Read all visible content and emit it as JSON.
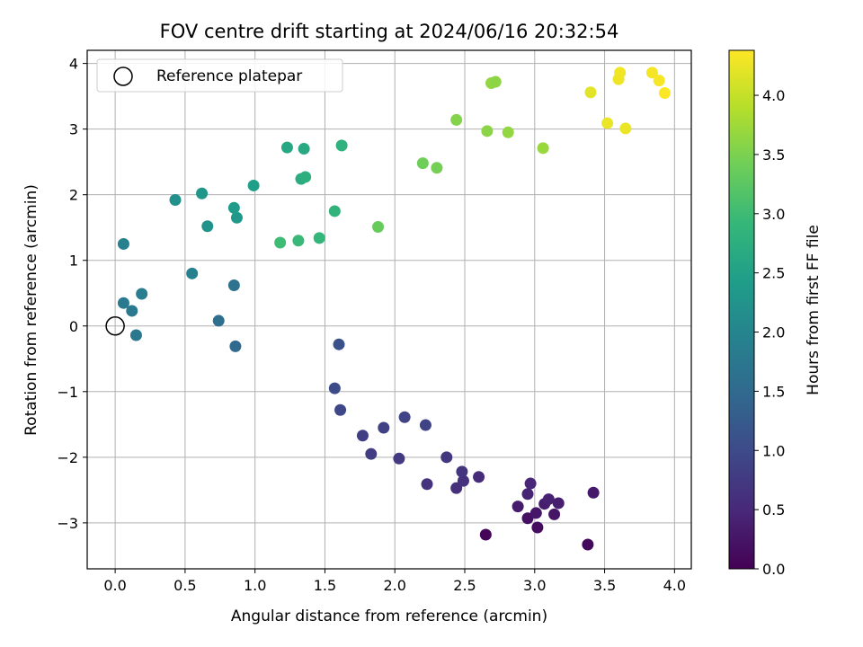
{
  "chart_data": {
    "type": "scatter",
    "title": "FOV centre drift starting at 2024/06/16 20:32:54",
    "xlabel": "Angular distance from reference (arcmin)",
    "ylabel": "Rotation from reference (arcmin)",
    "xlim": [
      -0.2,
      4.12
    ],
    "ylim": [
      -3.7,
      4.2
    ],
    "xticks": [
      0.0,
      0.5,
      1.0,
      1.5,
      2.0,
      2.5,
      3.0,
      3.5,
      4.0
    ],
    "xtick_labels": [
      "0.0",
      "0.5",
      "1.0",
      "1.5",
      "2.0",
      "2.5",
      "3.0",
      "3.5",
      "4.0"
    ],
    "yticks": [
      -3,
      -2,
      -1,
      0,
      1,
      2,
      3,
      4
    ],
    "ytick_labels": [
      "−3",
      "−2",
      "−1",
      "0",
      "1",
      "2",
      "3",
      "4"
    ],
    "grid": true,
    "legend": {
      "placement": "top-left",
      "label": "Reference platepar"
    },
    "reference_point": {
      "x": 0.0,
      "y": 0.0
    },
    "colorbar": {
      "label": "Hours from first FF file",
      "range": [
        0.0,
        4.38
      ],
      "ticks": [
        0.0,
        0.5,
        1.0,
        1.5,
        2.0,
        2.5,
        3.0,
        3.5,
        4.0
      ],
      "tick_labels": [
        "0.0",
        "0.5",
        "1.0",
        "1.5",
        "2.0",
        "2.5",
        "3.0",
        "3.5",
        "4.0"
      ],
      "colormap": "viridis",
      "colormap_stops": [
        "#440154",
        "#482878",
        "#3e4989",
        "#31688e",
        "#26828e",
        "#1f9e89",
        "#35b779",
        "#6ece58",
        "#b5de2b",
        "#fde725"
      ]
    },
    "points": [
      {
        "x": 2.65,
        "y": -3.18,
        "c": 0.05
      },
      {
        "x": 3.38,
        "y": -3.33,
        "c": 0.1
      },
      {
        "x": 3.02,
        "y": -3.07,
        "c": 0.15
      },
      {
        "x": 2.95,
        "y": -2.93,
        "c": 0.2
      },
      {
        "x": 3.14,
        "y": -2.87,
        "c": 0.25
      },
      {
        "x": 3.01,
        "y": -2.85,
        "c": 0.28
      },
      {
        "x": 2.88,
        "y": -2.75,
        "c": 0.32
      },
      {
        "x": 3.07,
        "y": -2.71,
        "c": 0.35
      },
      {
        "x": 3.17,
        "y": -2.7,
        "c": 0.38
      },
      {
        "x": 3.1,
        "y": -2.64,
        "c": 0.4
      },
      {
        "x": 2.95,
        "y": -2.56,
        "c": 0.44
      },
      {
        "x": 3.42,
        "y": -2.54,
        "c": 0.3
      },
      {
        "x": 2.97,
        "y": -2.4,
        "c": 0.48
      },
      {
        "x": 2.6,
        "y": -2.3,
        "c": 0.55
      },
      {
        "x": 2.44,
        "y": -2.47,
        "c": 0.6
      },
      {
        "x": 2.49,
        "y": -2.36,
        "c": 0.62
      },
      {
        "x": 2.23,
        "y": -2.41,
        "c": 0.65
      },
      {
        "x": 2.48,
        "y": -2.22,
        "c": 0.68
      },
      {
        "x": 2.37,
        "y": -2.0,
        "c": 0.72
      },
      {
        "x": 2.03,
        "y": -2.02,
        "c": 0.75
      },
      {
        "x": 1.83,
        "y": -1.95,
        "c": 0.78
      },
      {
        "x": 1.77,
        "y": -1.67,
        "c": 0.82
      },
      {
        "x": 1.92,
        "y": -1.55,
        "c": 0.85
      },
      {
        "x": 2.22,
        "y": -1.51,
        "c": 0.88
      },
      {
        "x": 2.07,
        "y": -1.39,
        "c": 0.9
      },
      {
        "x": 1.61,
        "y": -1.28,
        "c": 0.95
      },
      {
        "x": 1.57,
        "y": -0.95,
        "c": 1.0
      },
      {
        "x": 1.6,
        "y": -0.28,
        "c": 1.1
      },
      {
        "x": 0.86,
        "y": -0.31,
        "c": 1.5
      },
      {
        "x": 0.15,
        "y": -0.14,
        "c": 1.75
      },
      {
        "x": 0.74,
        "y": 0.08,
        "c": 1.6
      },
      {
        "x": 0.12,
        "y": 0.23,
        "c": 1.78
      },
      {
        "x": 0.06,
        "y": 0.35,
        "c": 1.8
      },
      {
        "x": 0.19,
        "y": 0.49,
        "c": 1.85
      },
      {
        "x": 0.85,
        "y": 0.62,
        "c": 1.65
      },
      {
        "x": 0.55,
        "y": 0.8,
        "c": 1.9
      },
      {
        "x": 0.06,
        "y": 1.25,
        "c": 1.9
      },
      {
        "x": 0.66,
        "y": 1.52,
        "c": 2.25
      },
      {
        "x": 0.87,
        "y": 1.65,
        "c": 2.35
      },
      {
        "x": 0.85,
        "y": 1.8,
        "c": 2.4
      },
      {
        "x": 0.43,
        "y": 1.92,
        "c": 2.2
      },
      {
        "x": 0.62,
        "y": 2.02,
        "c": 2.3
      },
      {
        "x": 0.99,
        "y": 2.14,
        "c": 2.45
      },
      {
        "x": 1.18,
        "y": 1.27,
        "c": 3.0
      },
      {
        "x": 1.31,
        "y": 1.3,
        "c": 2.95
      },
      {
        "x": 1.46,
        "y": 1.34,
        "c": 2.9
      },
      {
        "x": 1.57,
        "y": 1.75,
        "c": 2.85
      },
      {
        "x": 1.88,
        "y": 1.51,
        "c": 3.35
      },
      {
        "x": 1.33,
        "y": 2.24,
        "c": 2.7
      },
      {
        "x": 1.36,
        "y": 2.27,
        "c": 2.75
      },
      {
        "x": 1.23,
        "y": 2.72,
        "c": 2.6
      },
      {
        "x": 1.35,
        "y": 2.7,
        "c": 2.65
      },
      {
        "x": 1.62,
        "y": 2.75,
        "c": 2.8
      },
      {
        "x": 2.2,
        "y": 2.48,
        "c": 3.4
      },
      {
        "x": 2.3,
        "y": 2.41,
        "c": 3.45
      },
      {
        "x": 2.44,
        "y": 3.14,
        "c": 3.55
      },
      {
        "x": 2.66,
        "y": 2.97,
        "c": 3.6
      },
      {
        "x": 2.81,
        "y": 2.95,
        "c": 3.65
      },
      {
        "x": 3.06,
        "y": 2.71,
        "c": 3.7
      },
      {
        "x": 2.69,
        "y": 3.7,
        "c": 3.65
      },
      {
        "x": 2.72,
        "y": 3.72,
        "c": 3.62
      },
      {
        "x": 3.4,
        "y": 3.56,
        "c": 4.2
      },
      {
        "x": 3.52,
        "y": 3.09,
        "c": 4.25
      },
      {
        "x": 3.65,
        "y": 3.01,
        "c": 4.25
      },
      {
        "x": 3.6,
        "y": 3.76,
        "c": 4.28
      },
      {
        "x": 3.61,
        "y": 3.86,
        "c": 4.3
      },
      {
        "x": 3.84,
        "y": 3.86,
        "c": 4.32
      },
      {
        "x": 3.89,
        "y": 3.74,
        "c": 4.34
      },
      {
        "x": 3.93,
        "y": 3.55,
        "c": 4.36
      }
    ]
  }
}
